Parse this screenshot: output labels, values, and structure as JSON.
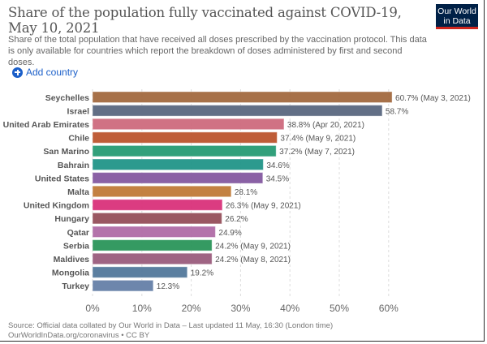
{
  "header": {
    "title": "Share of the population fully vaccinated against COVID-19, May 10, 2021",
    "subtitle": "Share of the total population that have received all doses prescribed by the vaccination protocol. This data is only available for countries which report the breakdown of doses administered by first and second doses.",
    "logo_line1": "Our World",
    "logo_line2": "in Data"
  },
  "controls": {
    "add_country_label": "Add country",
    "add_icon": "plus-circle-icon"
  },
  "footer": {
    "source": "Source: Official data collated by Our World in Data – Last updated 11 May, 16:30 (London time)",
    "link": "OurWorldInData.org/coronavirus • CC BY"
  },
  "colors": {
    "brand": "#002147",
    "brand_accent": "#ce261e",
    "link": "#1b5fc9"
  },
  "chart_data": {
    "type": "bar",
    "orientation": "horizontal",
    "title": "Share of the population fully vaccinated against COVID-19, May 10, 2021",
    "xlabel": "",
    "ylabel": "",
    "xlim": [
      0,
      60
    ],
    "grid": true,
    "x_ticks": [
      "0%",
      "10%",
      "20%",
      "30%",
      "40%",
      "50%",
      "60%"
    ],
    "x_tick_values": [
      0,
      10,
      20,
      30,
      40,
      50,
      60
    ],
    "categories": [
      "Seychelles",
      "Israel",
      "United Arab Emirates",
      "Chile",
      "San Marino",
      "Bahrain",
      "United States",
      "Malta",
      "United Kingdom",
      "Hungary",
      "Qatar",
      "Serbia",
      "Maldives",
      "Mongolia",
      "Turkey"
    ],
    "values": [
      60.7,
      58.7,
      38.8,
      37.4,
      37.2,
      34.6,
      34.5,
      28.1,
      26.3,
      26.2,
      24.9,
      24.2,
      24.2,
      19.2,
      12.3
    ],
    "labels": [
      "60.7% (May 3, 2021)",
      "58.7%",
      "38.8% (Apr 20, 2021)",
      "37.4% (May 9, 2021)",
      "37.2% (May 7, 2021)",
      "34.6%",
      "34.5%",
      "28.1%",
      "26.3% (May 9, 2021)",
      "26.2%",
      "24.9%",
      "24.2% (May 9, 2021)",
      "24.2% (May 8, 2021)",
      "19.2%",
      "12.3%"
    ],
    "bar_colors": [
      "#a2693f",
      "#5a6780",
      "#cd6a7d",
      "#bc542d",
      "#279b74",
      "#219588",
      "#8459a0",
      "#c07a38",
      "#d9317a",
      "#954e5a",
      "#b06ba6",
      "#2a955a",
      "#9a5c7c",
      "#52789b",
      "#6580a8"
    ]
  }
}
